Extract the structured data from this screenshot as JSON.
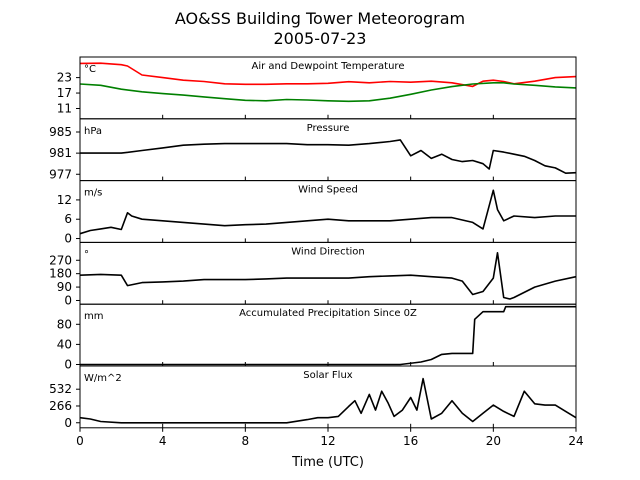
{
  "figure": {
    "title_line1": "AO&SS Building Tower Meteorogram",
    "title_line2": "2005-07-23",
    "xlabel": "Time (UTC)"
  },
  "chart_data": {
    "type": "line",
    "x_ticks": [
      0,
      4,
      8,
      12,
      16,
      20,
      24
    ],
    "xlim": [
      0,
      24
    ],
    "panels": [
      {
        "title": "Air and Dewpoint Temperature",
        "unit": "°C",
        "ylim": [
          7,
          31
        ],
        "yticks": [
          11,
          17,
          23
        ],
        "series": [
          {
            "color": "#ff0000",
            "x": [
              0,
              1,
              2,
              2.3,
              3,
              4,
              5,
              6,
              7,
              8,
              9,
              10,
              11,
              12,
              13,
              14,
              15,
              16,
              17,
              18,
              19,
              19.5,
              20,
              20.5,
              21,
              22,
              23,
              24
            ],
            "y": [
              28.5,
              28.6,
              28,
              27.5,
              24,
              23,
              22,
              21.5,
              20.6,
              20.4,
              20.4,
              20.6,
              20.6,
              20.8,
              21.4,
              21,
              21.5,
              21.2,
              21.6,
              21,
              19.6,
              21.6,
              22,
              21.5,
              20.6,
              21.6,
              23,
              23.4
            ]
          },
          {
            "color": "#008000",
            "x": [
              0,
              1,
              2,
              3,
              4,
              5,
              6,
              7,
              8,
              9,
              10,
              11,
              12,
              13,
              14,
              15,
              16,
              17,
              18,
              19,
              20,
              20.5,
              21,
              22,
              23,
              24
            ],
            "y": [
              20.5,
              20,
              18.5,
              17.5,
              16.8,
              16.2,
              15.5,
              14.8,
              14.2,
              14,
              14.5,
              14.3,
              14,
              13.8,
              14,
              15,
              16.5,
              18.2,
              19.5,
              20.5,
              21,
              21,
              20.5,
              20,
              19.4,
              19
            ]
          }
        ]
      },
      {
        "title": "Pressure",
        "unit": "hPa",
        "ylim": [
          975.8,
          987.5
        ],
        "yticks": [
          977,
          981,
          985
        ],
        "series": [
          {
            "color": "#000000",
            "x": [
              0,
              1,
              2,
              3,
              4,
              5,
              6,
              7,
              8,
              9,
              10,
              11,
              12,
              13,
              14,
              15,
              15.5,
              16,
              16.5,
              17,
              17.5,
              18,
              18.5,
              19,
              19.5,
              19.8,
              20,
              20.5,
              21,
              21.5,
              22,
              22.5,
              23,
              23.5,
              24
            ],
            "y": [
              981,
              981,
              981,
              981.5,
              982,
              982.5,
              982.7,
              982.8,
              982.8,
              982.8,
              982.8,
              982.6,
              982.6,
              982.5,
              982.8,
              983.2,
              983.5,
              980.5,
              981.5,
              980,
              980.8,
              979.8,
              979.4,
              979.6,
              979,
              978,
              981.5,
              981.2,
              980.8,
              980.4,
              979.6,
              978.6,
              978.2,
              977.2,
              977.3
            ]
          }
        ]
      },
      {
        "title": "Wind Speed",
        "unit": "m/s",
        "ylim": [
          -1.2,
          18
        ],
        "yticks": [
          0,
          6,
          12
        ],
        "series": [
          {
            "color": "#000000",
            "x": [
              0,
              0.5,
              1,
              1.5,
              2,
              2.3,
              2.5,
              3,
              4,
              5,
              6,
              7,
              8,
              9,
              10,
              11,
              12,
              13,
              14,
              15,
              16,
              17,
              18,
              19,
              19.5,
              20,
              20.2,
              20.5,
              21,
              22,
              23,
              24
            ],
            "y": [
              1.5,
              2.5,
              3,
              3.5,
              2.8,
              8,
              7,
              6,
              5.5,
              5,
              4.5,
              4,
              4.3,
              4.5,
              5,
              5.5,
              6,
              5.5,
              5.5,
              5.5,
              6,
              6.5,
              6.5,
              5,
              3,
              15,
              9,
              5.5,
              7,
              6.5,
              7,
              7
            ]
          }
        ]
      },
      {
        "title": "Wind Direction",
        "unit": "°",
        "ylim": [
          -25,
          390
        ],
        "yticks": [
          0,
          90,
          180,
          270
        ],
        "series": [
          {
            "color": "#000000",
            "x": [
              0,
              1,
              2,
              2.3,
              3,
              4,
              5,
              6,
              7,
              8,
              9,
              10,
              11,
              12,
              13,
              14,
              15,
              16,
              17,
              18,
              18.5,
              19,
              19.5,
              20,
              20.2,
              20.5,
              20.8,
              21,
              22,
              23,
              24
            ],
            "y": [
              170,
              175,
              170,
              100,
              120,
              125,
              130,
              140,
              140,
              140,
              145,
              150,
              150,
              150,
              150,
              160,
              165,
              170,
              160,
              150,
              130,
              40,
              60,
              150,
              320,
              20,
              10,
              20,
              90,
              130,
              160
            ]
          }
        ]
      },
      {
        "title": "Accumulated Precipitation Since 0Z",
        "unit": "mm",
        "ylim": [
          -3,
          120
        ],
        "yticks": [
          0,
          40,
          80
        ],
        "series": [
          {
            "color": "#000000",
            "x": [
              0,
              15.5,
              16.5,
              17,
              17.5,
              18,
              19,
              19.1,
              19.5,
              20.5,
              20.6,
              24
            ],
            "y": [
              0,
              0,
              5,
              10,
              20,
              22,
              22,
              90,
              105,
              105,
              115,
              115
            ]
          }
        ]
      },
      {
        "title": "Solar Flux",
        "unit": "W/m^2",
        "ylim": [
          -80,
          900
        ],
        "yticks": [
          0,
          266,
          532
        ],
        "series": [
          {
            "color": "#000000",
            "x": [
              0,
              0.5,
              1,
              2,
              4,
              6,
              8,
              10,
              11,
              11.5,
              12,
              12.5,
              13,
              13.3,
              13.6,
              14,
              14.3,
              14.6,
              14.9,
              15.2,
              15.6,
              16,
              16.3,
              16.6,
              17,
              17.5,
              18,
              18.5,
              19,
              19.5,
              20,
              20.5,
              21,
              21.5,
              22,
              22.5,
              23,
              23.5,
              24
            ],
            "y": [
              80,
              60,
              20,
              0,
              0,
              0,
              0,
              0,
              50,
              80,
              80,
              100,
              260,
              350,
              150,
              450,
              200,
              500,
              320,
              100,
              200,
              400,
              200,
              700,
              60,
              150,
              350,
              150,
              20,
              150,
              280,
              180,
              100,
              500,
              300,
              280,
              280,
              180,
              80
            ]
          }
        ]
      }
    ]
  }
}
